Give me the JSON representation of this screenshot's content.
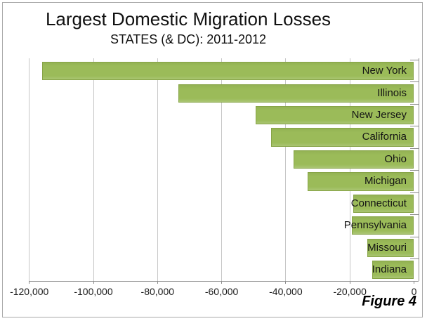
{
  "figure": {
    "title": "Largest Domestic Migration Losses",
    "subtitle": "STATES (& DC): 2011-2012",
    "caption": "Figure 4"
  },
  "chart_data": {
    "type": "bar",
    "orientation": "horizontal",
    "title": "Largest Domestic Migration Losses",
    "subtitle": "STATES (& DC): 2011-2012",
    "categories": [
      "New York",
      "Illinois",
      "New Jersey",
      "California",
      "Ohio",
      "Michigan",
      "Connecticut",
      "Pennsylvania",
      "Missouri",
      "Indiana"
    ],
    "values": [
      -116000,
      -73600,
      -49400,
      -44500,
      -37500,
      -33100,
      -18900,
      -19400,
      -14500,
      -13000
    ],
    "xlabel": "",
    "ylabel": "",
    "xlim": [
      -120000,
      0
    ],
    "x_tick_interval": 20000,
    "x_ticks": [
      -120000,
      -100000,
      -80000,
      -60000,
      -40000,
      -20000,
      0
    ],
    "x_tick_labels": [
      "-120,000",
      "-100,000",
      "-80,000",
      "-60,000",
      "-40,000",
      "-20,000",
      "0"
    ],
    "grid": "vertical-major",
    "legend": "none",
    "value_labels": "none",
    "category_label_position": "inside-end",
    "colors": {
      "bar_fill": "#9bbb59",
      "bar_fill_top": "#93b253",
      "bar_fill_bottom": "#aac573",
      "bar_border": "#87a447",
      "gridline": "#c6c6c6",
      "axis_line": "#8f8f8f",
      "tick_mark": "#8c8c8c",
      "text": "#1a1a1a",
      "frame_border": "#a9a9a9",
      "background": "#ffffff"
    }
  }
}
